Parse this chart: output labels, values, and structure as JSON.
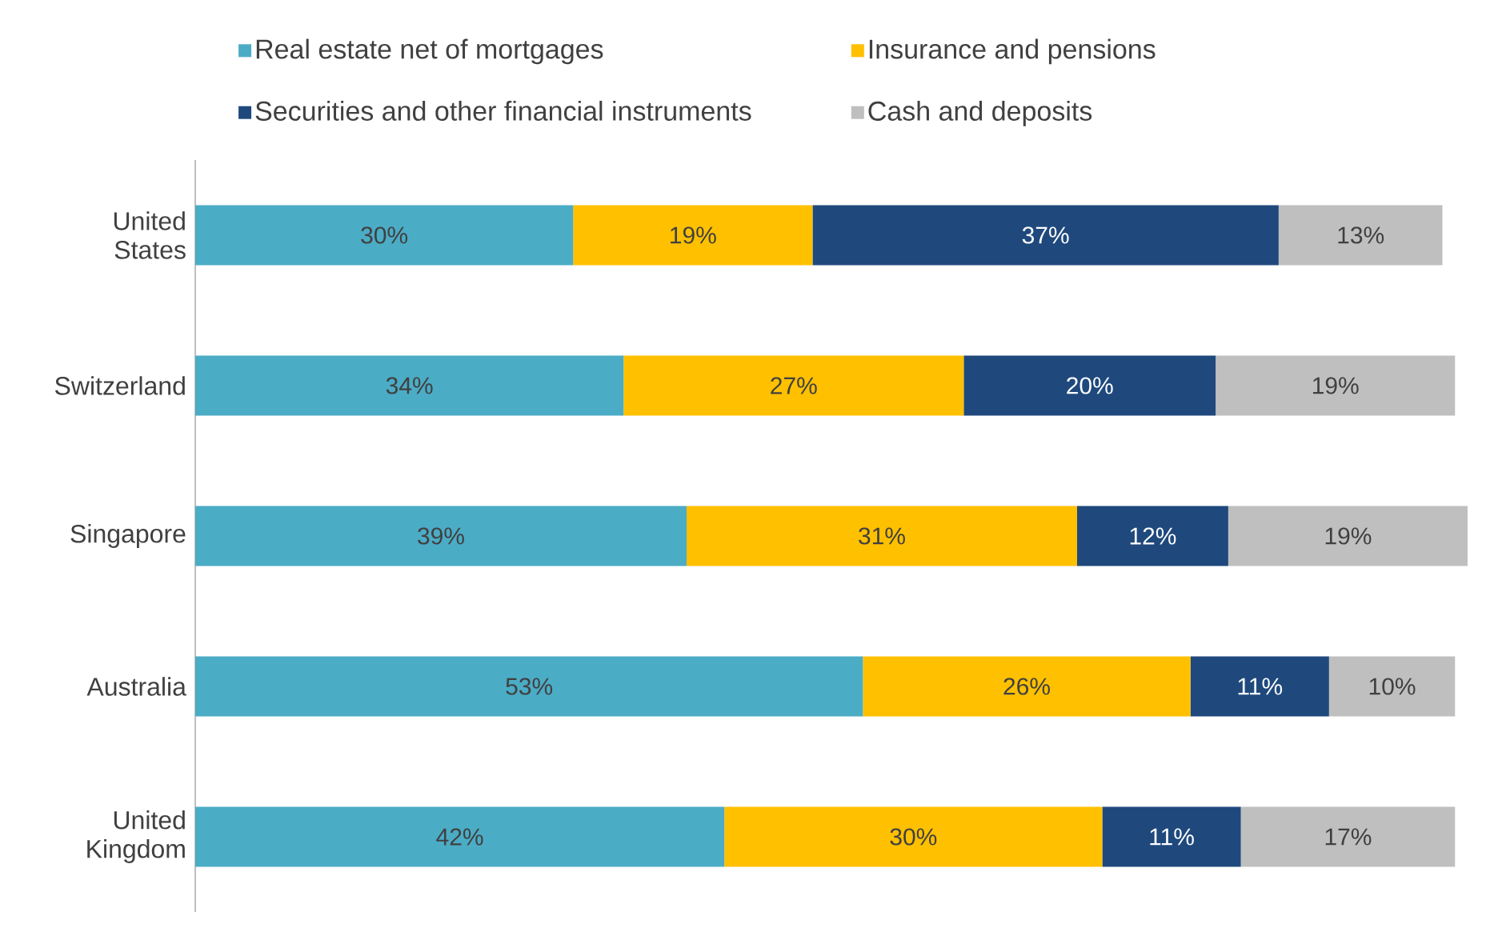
{
  "chart_data": {
    "type": "bar",
    "orientation": "horizontal",
    "stacked": true,
    "legend": "top",
    "tick_labels": "y",
    "categories": [
      "United States",
      "Switzerland",
      "Singapore",
      "Australia",
      "United Kingdom"
    ],
    "series": [
      {
        "name": "Real estate net of mortgages",
        "color": "#4bacc6",
        "values": [
          30,
          34,
          39,
          53,
          42
        ],
        "value_labels": [
          "30%",
          "34%",
          "39%",
          "53%",
          "42%"
        ]
      },
      {
        "name": "Insurance and pensions",
        "color": "#ffc000",
        "values": [
          19,
          27,
          31,
          26,
          30
        ],
        "value_labels": [
          "19%",
          "27%",
          "31%",
          "26%",
          "30%"
        ]
      },
      {
        "name": "Securities and other financial instruments",
        "color": "#1f497d",
        "values": [
          37,
          20,
          12,
          11,
          11
        ],
        "value_labels": [
          "37%",
          "20%",
          "12%",
          "11%",
          "11%"
        ]
      },
      {
        "name": "Cash and deposits",
        "color": "#bfbfbf",
        "values": [
          13,
          19,
          19,
          10,
          17
        ],
        "value_labels": [
          "13%",
          "19%",
          "19%",
          "10%",
          "17%"
        ]
      }
    ]
  }
}
